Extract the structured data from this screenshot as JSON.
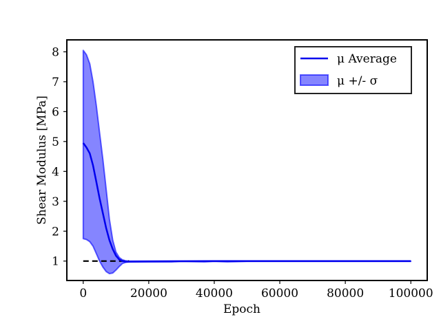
{
  "chart_data": {
    "type": "line",
    "title": "",
    "xlabel": "Epoch",
    "ylabel": "Shear Modulus [MPa]",
    "xlim": [
      -5000,
      105000
    ],
    "ylim": [
      0.35,
      8.4
    ],
    "xticks": [
      0,
      20000,
      40000,
      60000,
      80000,
      100000
    ],
    "xtick_labels": [
      "0",
      "20000",
      "40000",
      "60000",
      "80000",
      "100000"
    ],
    "yticks": [
      1,
      2,
      3,
      4,
      5,
      6,
      7,
      8
    ],
    "ytick_labels": [
      "1",
      "2",
      "3",
      "4",
      "5",
      "6",
      "7",
      "8"
    ],
    "grid": false,
    "legend_position": "top-right",
    "colors": {
      "mean": "#0000ee",
      "band": "#0000ff",
      "reference": "#000000"
    },
    "series": [
      {
        "name": "μ Average",
        "kind": "line",
        "x": [
          0,
          1000,
          2000,
          3000,
          4000,
          5000,
          6000,
          7000,
          8000,
          9000,
          10000,
          11000,
          12000,
          13000,
          14000,
          20000,
          40000,
          60000,
          80000,
          100000
        ],
        "y": [
          4.95,
          4.8,
          4.6,
          4.2,
          3.65,
          3.1,
          2.6,
          2.1,
          1.7,
          1.4,
          1.18,
          1.05,
          1.0,
          0.98,
          0.98,
          0.99,
          1.0,
          1.0,
          1.0,
          1.0
        ]
      },
      {
        "name": "μ +/- σ",
        "kind": "band",
        "x": [
          0,
          1000,
          2000,
          3000,
          4000,
          5000,
          6000,
          7000,
          8000,
          9000,
          10000,
          11000,
          12000,
          13000,
          14000,
          16000,
          20000,
          27000,
          30000,
          37000,
          40000,
          44000,
          50000,
          60000,
          80000,
          100000
        ],
        "lower": [
          1.75,
          1.72,
          1.65,
          1.5,
          1.25,
          1.0,
          0.8,
          0.65,
          0.58,
          0.6,
          0.7,
          0.82,
          0.92,
          0.96,
          0.97,
          0.97,
          0.97,
          0.97,
          0.99,
          0.97,
          0.99,
          0.97,
          0.99,
          0.99,
          0.99,
          0.99
        ],
        "upper": [
          8.05,
          7.9,
          7.6,
          7.0,
          6.2,
          5.3,
          4.4,
          3.4,
          2.4,
          1.7,
          1.3,
          1.12,
          1.04,
          1.01,
          1.0,
          1.0,
          1.0,
          1.0,
          1.0,
          1.0,
          1.0,
          1.0,
          1.0,
          1.0,
          1.0,
          1.0
        ]
      },
      {
        "name": "",
        "kind": "reference",
        "style": "dashed",
        "x": [
          0,
          14000
        ],
        "y": [
          1.0,
          1.0
        ]
      }
    ]
  }
}
